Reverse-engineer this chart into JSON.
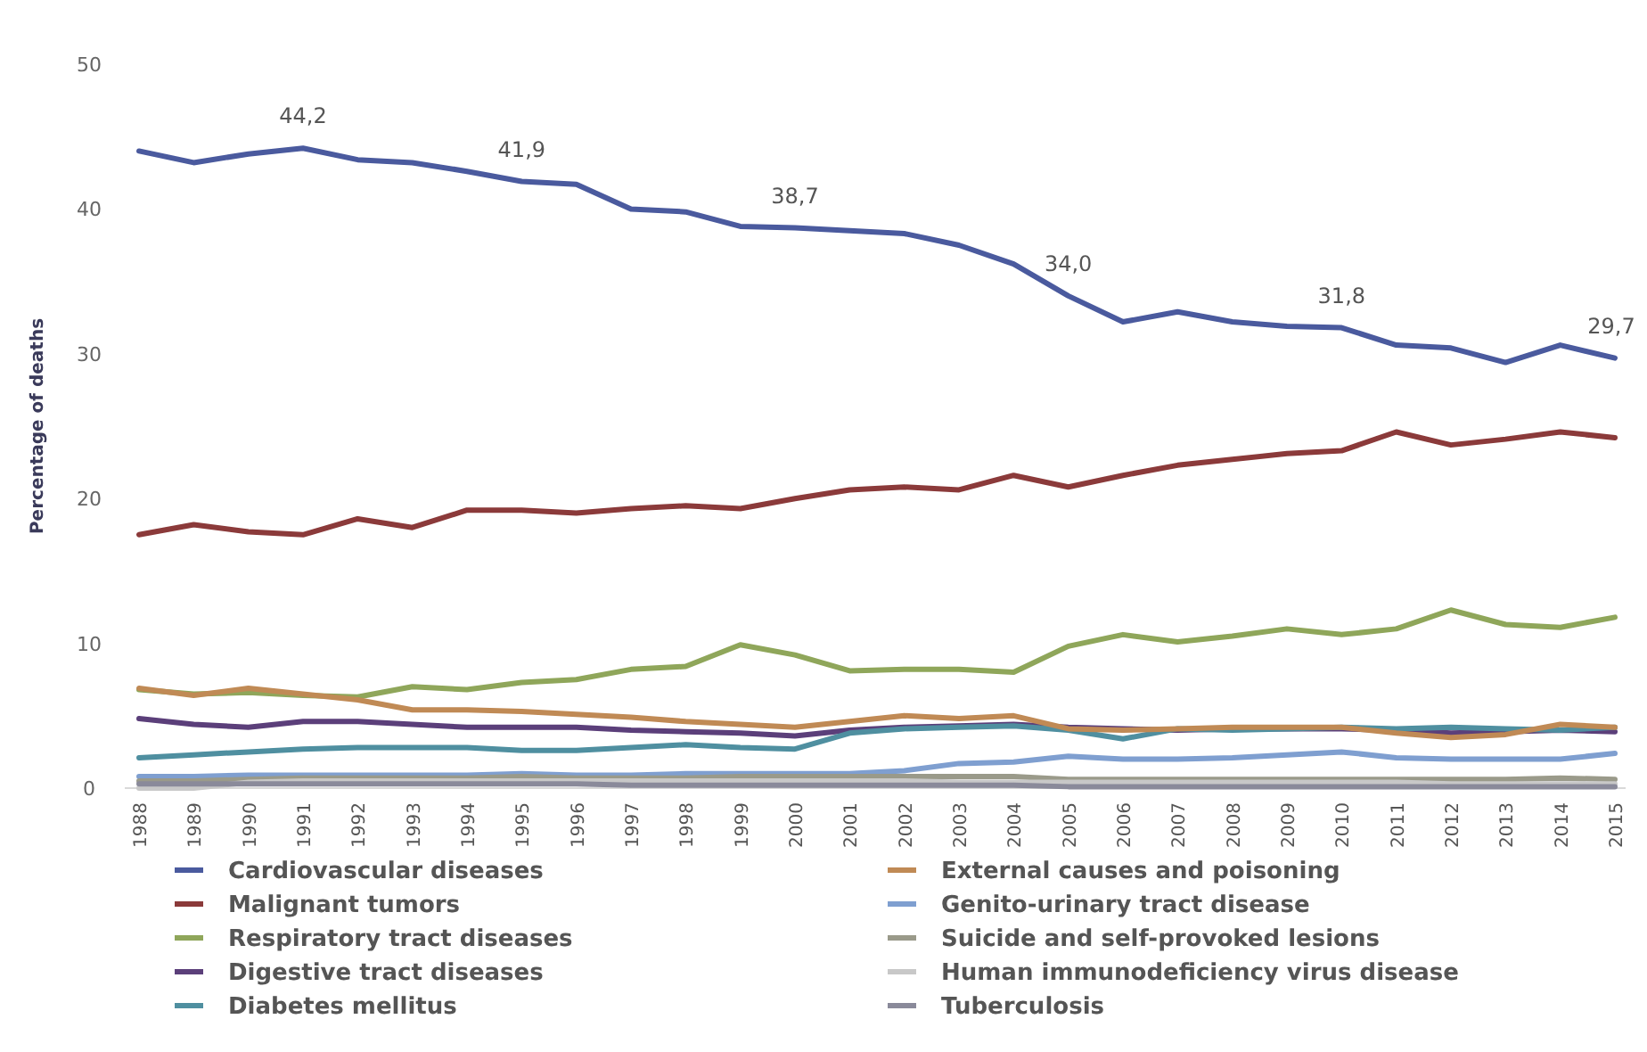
{
  "chart_data": {
    "type": "line",
    "ylabel": "Percentage of deaths",
    "categories": [
      "1988",
      "1989",
      "1990",
      "1991",
      "1992",
      "1993",
      "1994",
      "1995",
      "1996",
      "1997",
      "1998",
      "1999",
      "2000",
      "2001",
      "2002",
      "2003",
      "2004",
      "2005",
      "2006",
      "2007",
      "2008",
      "2009",
      "2010",
      "2011",
      "2012",
      "2013",
      "2014",
      "2015"
    ],
    "ylim": [
      0,
      50
    ],
    "yticks": [
      0,
      10,
      20,
      30,
      40,
      50
    ],
    "grid": false,
    "legend": "bottom",
    "marker": "none",
    "line_style": "solid",
    "series": [
      {
        "name": "Cardiovascular diseases",
        "color": "#4a5a9e",
        "values": [
          44.0,
          43.2,
          43.8,
          44.2,
          43.4,
          43.2,
          42.6,
          41.9,
          41.7,
          40.0,
          39.8,
          38.8,
          38.7,
          38.5,
          38.3,
          37.5,
          36.2,
          34.0,
          32.2,
          32.9,
          32.2,
          31.9,
          31.8,
          30.6,
          30.4,
          29.4,
          30.6,
          29.7
        ]
      },
      {
        "name": "Malignant tumors",
        "color": "#8b3a3a",
        "values": [
          17.5,
          18.2,
          17.7,
          17.5,
          18.6,
          18.0,
          19.2,
          19.2,
          19.0,
          19.3,
          19.5,
          19.3,
          20.0,
          20.6,
          20.8,
          20.6,
          21.6,
          20.8,
          21.6,
          22.3,
          22.7,
          23.1,
          23.3,
          24.6,
          23.7,
          24.1,
          24.6,
          24.2
        ]
      },
      {
        "name": "Respiratory tract diseases",
        "color": "#8fa65a",
        "values": [
          6.8,
          6.5,
          6.6,
          6.4,
          6.3,
          7.0,
          6.8,
          7.3,
          7.5,
          8.2,
          8.4,
          9.9,
          9.2,
          8.1,
          8.2,
          8.2,
          8.0,
          9.8,
          10.6,
          10.1,
          10.5,
          11.0,
          10.6,
          11.0,
          12.3,
          11.3,
          11.1,
          11.8
        ]
      },
      {
        "name": "Digestive tract diseases",
        "color": "#5b3f7a",
        "values": [
          4.8,
          4.4,
          4.2,
          4.6,
          4.6,
          4.4,
          4.2,
          4.2,
          4.2,
          4.0,
          3.9,
          3.8,
          3.6,
          4.0,
          4.2,
          4.3,
          4.4,
          4.2,
          4.1,
          4.0,
          4.1,
          4.1,
          4.1,
          4.0,
          3.8,
          3.9,
          4.0,
          3.9
        ]
      },
      {
        "name": "Diabetes mellitus",
        "color": "#4f8fa0",
        "values": [
          2.1,
          2.3,
          2.5,
          2.7,
          2.8,
          2.8,
          2.8,
          2.6,
          2.6,
          2.8,
          3.0,
          2.8,
          2.7,
          3.8,
          4.1,
          4.2,
          4.3,
          4.0,
          3.4,
          4.1,
          4.0,
          4.1,
          4.2,
          4.1,
          4.2,
          4.1,
          4.0,
          4.2
        ]
      },
      {
        "name": "External causes and poisoning",
        "color": "#c08a55",
        "values": [
          6.9,
          6.4,
          6.9,
          6.5,
          6.1,
          5.4,
          5.4,
          5.3,
          5.1,
          4.9,
          4.6,
          4.4,
          4.2,
          4.6,
          5.0,
          4.8,
          5.0,
          4.1,
          4.0,
          4.1,
          4.2,
          4.2,
          4.2,
          3.8,
          3.5,
          3.7,
          4.4,
          4.2
        ]
      },
      {
        "name": "Genito-urinary tract disease",
        "color": "#7f9fd0",
        "values": [
          0.8,
          0.8,
          0.9,
          0.9,
          0.9,
          0.9,
          0.9,
          1.0,
          0.9,
          0.9,
          1.0,
          1.0,
          1.0,
          1.0,
          1.2,
          1.7,
          1.8,
          2.2,
          2.0,
          2.0,
          2.1,
          2.3,
          2.5,
          2.1,
          2.0,
          2.0,
          2.0,
          2.4
        ]
      },
      {
        "name": "Suicide and self-provoked lesions",
        "color": "#9a9a8a",
        "values": [
          0.5,
          0.5,
          0.6,
          0.7,
          0.7,
          0.7,
          0.7,
          0.8,
          0.7,
          0.7,
          0.7,
          0.8,
          0.8,
          0.8,
          0.8,
          0.8,
          0.8,
          0.6,
          0.6,
          0.6,
          0.6,
          0.6,
          0.6,
          0.6,
          0.6,
          0.6,
          0.7,
          0.6
        ]
      },
      {
        "name": "Human immunodeficiency virus disease",
        "color": "#c8c8c8",
        "values": [
          0.0,
          0.0,
          0.4,
          0.5,
          0.5,
          0.5,
          0.5,
          0.5,
          0.5,
          0.5,
          0.5,
          0.5,
          0.5,
          0.5,
          0.5,
          0.4,
          0.4,
          0.4,
          0.4,
          0.4,
          0.4,
          0.4,
          0.4,
          0.4,
          0.3,
          0.3,
          0.3,
          0.3
        ]
      },
      {
        "name": "Tuberculosis",
        "color": "#8a8a9a",
        "values": [
          0.3,
          0.3,
          0.3,
          0.3,
          0.3,
          0.3,
          0.3,
          0.3,
          0.3,
          0.2,
          0.2,
          0.2,
          0.2,
          0.2,
          0.2,
          0.2,
          0.2,
          0.1,
          0.1,
          0.1,
          0.1,
          0.1,
          0.1,
          0.1,
          0.1,
          0.1,
          0.1,
          0.1
        ]
      }
    ],
    "annotations": [
      {
        "text": "44,2",
        "x": "1991",
        "y": 44.2
      },
      {
        "text": "41,9",
        "x": "1995",
        "y": 41.9
      },
      {
        "text": "38,7",
        "x": "2000",
        "y": 38.7
      },
      {
        "text": "34,0",
        "x": "2005",
        "y": 34.0
      },
      {
        "text": "31,8",
        "x": "2010",
        "y": 31.8
      },
      {
        "text": "29,7",
        "x": "2015",
        "y": 29.7
      }
    ]
  }
}
